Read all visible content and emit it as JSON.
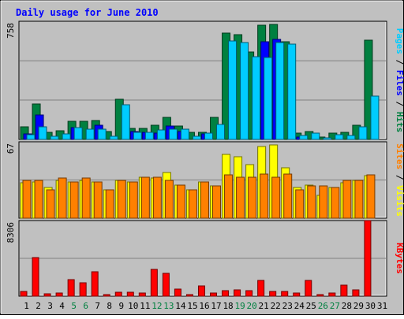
{
  "chart_data": [
    {
      "type": "bar",
      "title": "Daily usage for June 2010",
      "panel": "top",
      "ylabel_max": "758",
      "right_label_parts": [
        {
          "text": "Pages",
          "color": "#00ccff"
        },
        {
          "text": " / ",
          "color": "#000000"
        },
        {
          "text": "Files",
          "color": "#0000ff"
        },
        {
          "text": " / ",
          "color": "#000000"
        },
        {
          "text": "Hits",
          "color": "#008040"
        }
      ],
      "categories": [
        "1",
        "2",
        "3",
        "4",
        "5",
        "6",
        "7",
        "8",
        "9",
        "10",
        "11",
        "12",
        "13",
        "14",
        "15",
        "16",
        "17",
        "18",
        "19",
        "20",
        "21",
        "22",
        "23",
        "24",
        "25",
        "26",
        "27",
        "28",
        "29",
        "30",
        "31"
      ],
      "ylim": [
        0,
        758
      ],
      "series": [
        {
          "name": "Hits",
          "color": "#008040",
          "values": [
            82,
            225,
            44,
            58,
            118,
            115,
            120,
            51,
            257,
            72,
            72,
            91,
            140,
            85,
            45,
            45,
            143,
            680,
            672,
            562,
            735,
            737,
            627,
            42,
            53,
            17,
            41,
            48,
            90,
            635,
            0
          ]
        },
        {
          "name": "Files",
          "color": "#0000ff",
          "values": [
            35,
            158,
            0,
            0,
            75,
            0,
            90,
            0,
            0,
            50,
            45,
            40,
            85,
            50,
            0,
            35,
            0,
            0,
            0,
            0,
            627,
            642,
            0,
            15,
            0,
            0,
            0,
            0,
            0,
            0,
            0
          ]
        },
        {
          "name": "Pages",
          "color": "#00ccff",
          "values": [
            31,
            81,
            22,
            35,
            76,
            66,
            65,
            22,
            223,
            48,
            46,
            60,
            65,
            64,
            22,
            40,
            96,
            631,
            624,
            530,
            527,
            620,
            612,
            27,
            38,
            10,
            30,
            25,
            79,
            279,
            0
          ]
        }
      ]
    },
    {
      "type": "bar",
      "panel": "middle",
      "ylabel_max": "67",
      "right_label_parts": [
        {
          "text": "Sites",
          "color": "#ff8000"
        },
        {
          "text": " / ",
          "color": "#000000"
        },
        {
          "text": "Visits",
          "color": "#ffff00"
        }
      ],
      "ylim": [
        0,
        67
      ],
      "series": [
        {
          "name": "Visits",
          "color": "#ffff00",
          "values": [
            31,
            32,
            27,
            33,
            32,
            33,
            32,
            25,
            33,
            32,
            36,
            35,
            40,
            29,
            25,
            32,
            28,
            56,
            54,
            47,
            63,
            64,
            44,
            27,
            29,
            20,
            27,
            31,
            33,
            37,
            0
          ]
        },
        {
          "name": "Sites",
          "color": "#ff8000",
          "values": [
            33,
            33,
            25,
            35,
            32,
            35,
            32,
            25,
            33,
            32,
            36,
            36,
            33,
            29,
            25,
            32,
            28,
            38,
            36,
            36,
            39,
            36,
            39,
            25,
            28,
            28,
            27,
            33,
            33,
            38,
            0
          ]
        }
      ]
    },
    {
      "type": "bar",
      "panel": "bottom",
      "ylabel_max": "8306",
      "right_label_parts": [
        {
          "text": "KBytes",
          "color": "#ff0000"
        }
      ],
      "ylim": [
        0,
        8306
      ],
      "weekend_days": [
        "5",
        "6",
        "12",
        "13",
        "19",
        "20",
        "26",
        "27"
      ],
      "series": [
        {
          "name": "KBytes",
          "color": "#ff0000",
          "values": [
            520,
            4200,
            300,
            350,
            1830,
            1440,
            2700,
            150,
            390,
            400,
            380,
            2910,
            2510,
            800,
            150,
            1160,
            380,
            620,
            660,
            620,
            1770,
            560,
            540,
            350,
            1770,
            150,
            350,
            1240,
            700,
            8306,
            0
          ]
        }
      ]
    }
  ]
}
